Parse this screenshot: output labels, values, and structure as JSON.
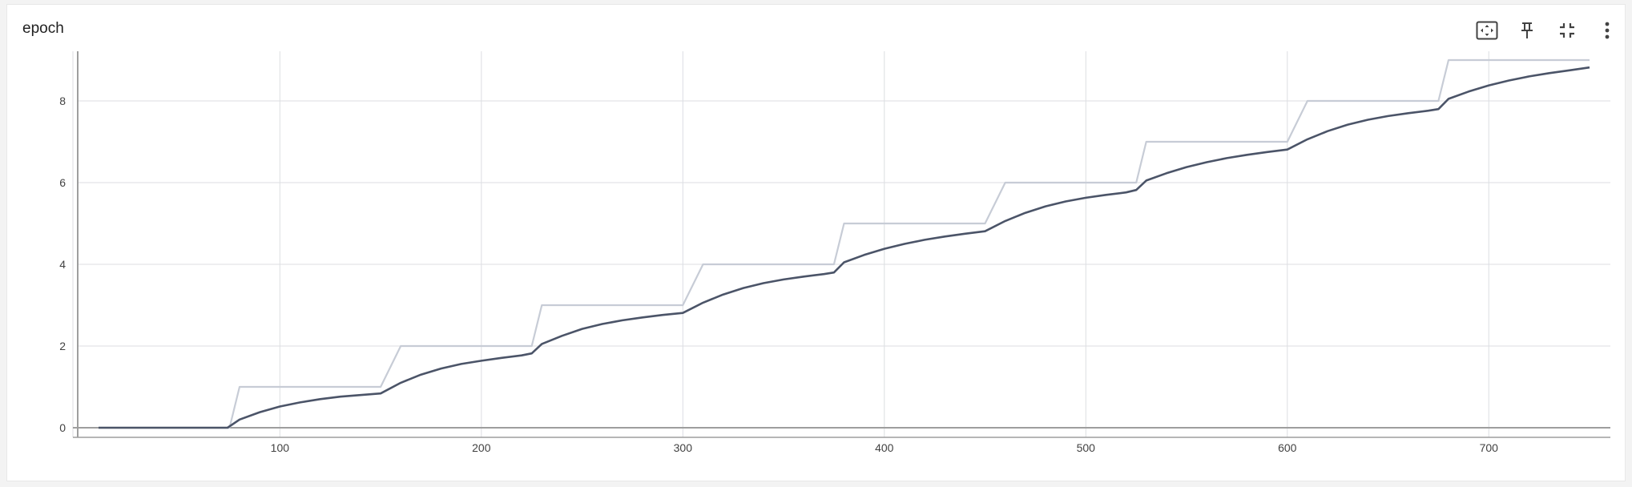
{
  "card": {
    "title": "epoch",
    "toolbar": [
      {
        "name": "fit-domain-icon",
        "label": ""
      },
      {
        "name": "pin-icon",
        "label": ""
      },
      {
        "name": "collapse-icon",
        "label": ""
      },
      {
        "name": "more-vert-icon",
        "label": ""
      }
    ]
  },
  "colors": {
    "smoothed": "#4b5468",
    "raw": "#c7ccd6",
    "grid": "#dcdee2",
    "axis": "#9e9e9e"
  },
  "chart_data": {
    "type": "line",
    "title": "epoch",
    "xlabel": "",
    "ylabel": "",
    "xlim": [
      0,
      760
    ],
    "ylim": [
      -0.2,
      9.25
    ],
    "x_ticks": [
      100,
      200,
      300,
      400,
      500,
      600,
      700
    ],
    "y_ticks": [
      0,
      2,
      4,
      6,
      8
    ],
    "grid": true,
    "series": [
      {
        "role": "raw",
        "x": [
          10,
          75,
          80,
          150,
          160,
          225,
          230,
          300,
          310,
          375,
          380,
          450,
          460,
          525,
          530,
          600,
          610,
          675,
          680,
          750
        ],
        "y": [
          0,
          0,
          1,
          1,
          2,
          2,
          3,
          3,
          4,
          4,
          5,
          5,
          6,
          6,
          7,
          7,
          8,
          8,
          9,
          9
        ]
      },
      {
        "role": "smoothed",
        "x": [
          10,
          74,
          80,
          90,
          100,
          110,
          120,
          130,
          140,
          150,
          160,
          170,
          180,
          190,
          200,
          210,
          220,
          225,
          230,
          240,
          250,
          260,
          270,
          280,
          290,
          300,
          310,
          320,
          330,
          340,
          350,
          360,
          370,
          375,
          380,
          390,
          400,
          410,
          420,
          430,
          440,
          450,
          460,
          470,
          480,
          490,
          500,
          510,
          520,
          525,
          530,
          540,
          550,
          560,
          570,
          580,
          590,
          600,
          610,
          620,
          630,
          640,
          650,
          660,
          670,
          675,
          680,
          690,
          700,
          710,
          720,
          730,
          740,
          750
        ],
        "y": [
          0,
          0,
          0.2,
          0.38,
          0.52,
          0.62,
          0.7,
          0.76,
          0.8,
          0.84,
          1.1,
          1.3,
          1.45,
          1.56,
          1.64,
          1.71,
          1.77,
          1.82,
          2.05,
          2.25,
          2.42,
          2.54,
          2.63,
          2.7,
          2.76,
          2.81,
          3.06,
          3.26,
          3.42,
          3.54,
          3.63,
          3.7,
          3.76,
          3.8,
          4.05,
          4.23,
          4.38,
          4.5,
          4.6,
          4.68,
          4.75,
          4.81,
          5.06,
          5.26,
          5.42,
          5.54,
          5.63,
          5.7,
          5.76,
          5.82,
          6.05,
          6.23,
          6.38,
          6.5,
          6.6,
          6.68,
          6.75,
          6.81,
          7.06,
          7.26,
          7.42,
          7.54,
          7.63,
          7.7,
          7.76,
          7.8,
          8.05,
          8.23,
          8.38,
          8.5,
          8.6,
          8.68,
          8.75,
          8.82
        ]
      }
    ]
  }
}
